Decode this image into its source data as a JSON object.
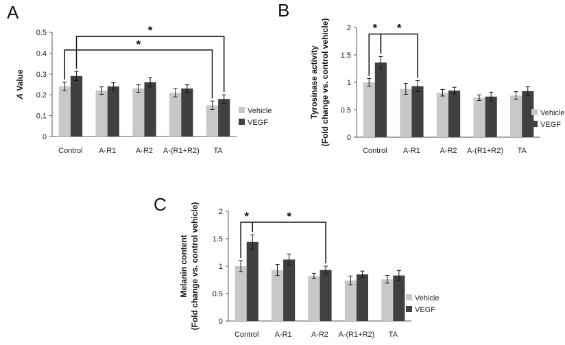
{
  "legend": [
    "Vehicle",
    "VEGF"
  ],
  "colors": {
    "vehicle": "#c8c8c8",
    "vegf": "#404040",
    "axis": "#555555",
    "bracket": "#111111"
  },
  "chart_data": [
    {
      "id": "A",
      "type": "bar",
      "panel_label": "A",
      "ylabel_parts": [
        {
          "text": "A",
          "italic": true
        },
        {
          "text": " Value",
          "italic": false
        }
      ],
      "ylim": [
        0,
        0.5
      ],
      "yticks": [
        "0",
        "0.1",
        "0.2",
        "0.3",
        "0.4",
        "0.5"
      ],
      "categories": [
        "Control",
        "A-R1",
        "A-R2",
        "A-(R1+R2)",
        "TA"
      ],
      "series": [
        {
          "name": "Vehicle",
          "values": [
            0.24,
            0.22,
            0.23,
            0.21,
            0.15
          ],
          "errors": [
            0.02,
            0.018,
            0.018,
            0.02,
            0.02
          ]
        },
        {
          "name": "VEGF",
          "values": [
            0.29,
            0.24,
            0.26,
            0.23,
            0.18
          ],
          "errors": [
            0.022,
            0.018,
            0.022,
            0.018,
            0.02
          ]
        }
      ],
      "significance": [
        {
          "label": "*",
          "from": {
            "category": 0,
            "series": 1
          },
          "to": {
            "category": 4,
            "series": 1
          },
          "level": 0.48
        },
        {
          "label": "*",
          "from": {
            "category": 0,
            "series": 0
          },
          "to": {
            "category": 4,
            "series": 0
          },
          "level": 0.415
        }
      ]
    },
    {
      "id": "B",
      "type": "bar",
      "panel_label": "B",
      "ylabel_lines": [
        "Tyrosinase activity",
        "(Fold change vs. control vehicle)"
      ],
      "ylim": [
        0,
        2
      ],
      "yticks": [
        "0",
        "0.5",
        "1",
        "1.5",
        "2"
      ],
      "categories": [
        "Control",
        "A-R1",
        "A-R2",
        "A-(R1+R2)",
        "TA"
      ],
      "series": [
        {
          "name": "Vehicle",
          "values": [
            1.0,
            0.88,
            0.81,
            0.72,
            0.76
          ],
          "errors": [
            0.07,
            0.1,
            0.06,
            0.05,
            0.07
          ]
        },
        {
          "name": "VEGF",
          "values": [
            1.36,
            0.93,
            0.85,
            0.74,
            0.84
          ],
          "errors": [
            0.11,
            0.1,
            0.06,
            0.08,
            0.08
          ]
        }
      ],
      "significance": [
        {
          "label": "*",
          "from": {
            "category": 0,
            "series": 0
          },
          "to": {
            "category": 0,
            "series": 1
          },
          "level": 1.88
        },
        {
          "label": "*",
          "from": {
            "category": 0,
            "series": 1
          },
          "to": {
            "category": 1,
            "series": 1
          },
          "level": 1.88
        }
      ]
    },
    {
      "id": "C",
      "type": "bar",
      "panel_label": "C",
      "ylabel_lines": [
        "Melanin content",
        "(Fold change vs. control vehicle)"
      ],
      "ylim": [
        0,
        2
      ],
      "yticks": [
        "0",
        "0.5",
        "1",
        "1.5",
        "2"
      ],
      "categories": [
        "Control",
        "A-R1",
        "A-R2",
        "A-(R1+R2)",
        "TA"
      ],
      "series": [
        {
          "name": "Vehicle",
          "values": [
            1.0,
            0.93,
            0.82,
            0.74,
            0.76
          ],
          "errors": [
            0.1,
            0.1,
            0.05,
            0.08,
            0.07
          ]
        },
        {
          "name": "VEGF",
          "values": [
            1.44,
            1.12,
            0.93,
            0.85,
            0.83
          ],
          "errors": [
            0.13,
            0.1,
            0.07,
            0.06,
            0.09
          ]
        }
      ],
      "significance": [
        {
          "label": "*",
          "from": {
            "category": 0,
            "series": 0
          },
          "to": {
            "category": 0,
            "series": 1
          },
          "level": 1.8
        },
        {
          "label": "*",
          "from": {
            "category": 0,
            "series": 1
          },
          "to": {
            "category": 2,
            "series": 1
          },
          "level": 1.8
        }
      ]
    }
  ]
}
